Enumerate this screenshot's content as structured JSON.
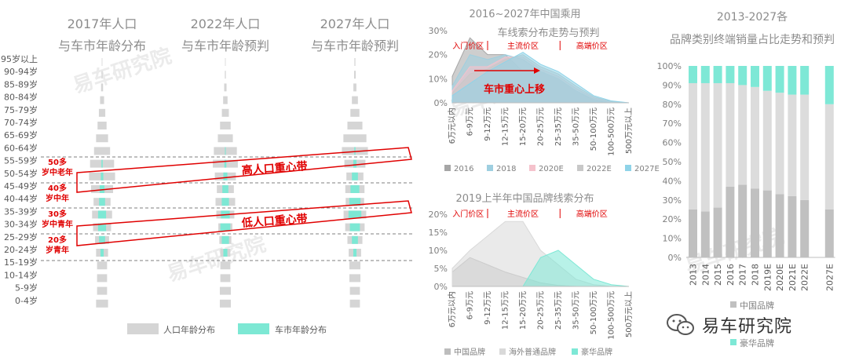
{
  "colors": {
    "population": "#d5d5d5",
    "car": "#7de8d4",
    "red": "#e00000",
    "dark_bar": "#c0c0c0",
    "light_bar": "#dcdcdc",
    "teal": "#7ee8d6"
  },
  "watermark": "易车研究院",
  "brand": {
    "name": "易车研究院",
    "icon": "wechat-icon"
  },
  "chart_data": [
    {
      "type": "bar",
      "subtype": "population-pyramids",
      "panels": [
        {
          "title": "2017年人口与车市年龄分布"
        },
        {
          "title": "2022年人口与车市年龄预判"
        },
        {
          "title": "2027年人口与车市年龄预判"
        }
      ],
      "categories": [
        "95岁以上",
        "90-94岁",
        "85-89岁",
        "80-84岁",
        "75-79岁",
        "70-74岁",
        "65-69岁",
        "60-64岁",
        "55-59岁",
        "50-54岁",
        "45-49岁",
        "40-44岁",
        "35-39岁",
        "30-34岁",
        "25-29岁",
        "20-24岁",
        "15-19岁",
        "10-14岁",
        "5-9岁",
        "0-4岁"
      ],
      "series": [
        {
          "name": "人口年龄分布",
          "values_by_panel": [
            [
              0.3,
              0.5,
              1,
              2,
              3.2,
              4.5,
              6,
              8,
              12,
              13,
              11,
              8.5,
              10,
              9,
              7,
              6,
              5,
              5,
              5,
              6
            ],
            [
              0.3,
              0.5,
              1.2,
              2.2,
              3.5,
              5.3,
              7.5,
              11.5,
              12.5,
              10.5,
              8.5,
              9.8,
              9,
              7,
              6,
              5,
              5,
              5,
              5.5,
              5.5
            ],
            [
              0.5,
              0.8,
              1.5,
              3,
              4.5,
              7.5,
              11.5,
              13,
              10.5,
              8.5,
              9.6,
              9.2,
              11.3,
              9.7,
              7.5,
              6.2,
              5.5,
              5.5,
              5,
              5
            ]
          ]
        },
        {
          "name": "车市年龄分布",
          "values_by_panel": [
            [
              0,
              0,
              0,
              0,
              0,
              0,
              0,
              0,
              0.3,
              0.6,
              1.2,
              1.5,
              2,
              2,
              1.5,
              0.8,
              0,
              0,
              0,
              0
            ],
            [
              0,
              0,
              0,
              0,
              0,
              0,
              0,
              0.2,
              0.5,
              1,
              1.5,
              1.8,
              2.2,
              2.5,
              1.8,
              1,
              0,
              0,
              0,
              0
            ],
            [
              0,
              0,
              0,
              0,
              0,
              0,
              0,
              0.3,
              0.8,
              1.5,
              2.2,
              2.8,
              3.2,
              2.5,
              1.5,
              0.8,
              0,
              0,
              0,
              0
            ]
          ]
        }
      ],
      "annotations": [
        {
          "label": "50多岁中老年"
        },
        {
          "label": "40多岁中年"
        },
        {
          "label": "30多岁中青年"
        },
        {
          "label": "20多岁青年"
        },
        {
          "label": "高人口重心带"
        },
        {
          "label": "低人口重心带"
        }
      ],
      "legend": {
        "position": "bottom"
      }
    },
    {
      "type": "area",
      "title": "2016~2027年中国乘用车线索分布走势与预判",
      "categories": [
        "6万元以内",
        "6-9万元",
        "9-12万元",
        "12-15万元",
        "15-20万元",
        "20-25万元",
        "25-35万元",
        "35-50万元",
        "50-100万元",
        "100-500万元",
        "500万元以上"
      ],
      "series": [
        {
          "name": "2016",
          "values": [
            11,
            27,
            20,
            20,
            13,
            13,
            10,
            5,
            1,
            0,
            0
          ]
        },
        {
          "name": "2018",
          "values": [
            7,
            20,
            18,
            20,
            18,
            13,
            10,
            5,
            1.5,
            0,
            0
          ]
        },
        {
          "name": "2020E",
          "values": [
            5,
            15,
            15,
            19,
            19,
            14,
            11,
            6,
            2,
            0.5,
            0
          ]
        },
        {
          "name": "2022E",
          "values": [
            4,
            12,
            14,
            18,
            20,
            15,
            12,
            7,
            2.5,
            0.5,
            0
          ]
        },
        {
          "name": "2027E",
          "values": [
            3,
            8,
            13,
            17,
            21,
            16,
            13,
            8,
            3,
            0.8,
            0
          ]
        }
      ],
      "ylim": [
        0,
        30
      ],
      "yticks": [
        "0%",
        "10%",
        "20%",
        "30%"
      ],
      "annotations": [
        "入门价区",
        "主流价区",
        "高端价区",
        "车市重心上移"
      ],
      "legend": {
        "position": "bottom"
      }
    },
    {
      "type": "area",
      "title": "2019上半年中国品牌线索分布",
      "categories": [
        "6万元以内",
        "6-9万元",
        "9-12万元",
        "12-15万元",
        "15-20万元",
        "20-25万元",
        "25-35万元",
        "35-50万元",
        "50-100万元",
        "100-500万元",
        "500万元以上"
      ],
      "series": [
        {
          "name": "中国品牌",
          "values": [
            4,
            8,
            6,
            4,
            2.5,
            1,
            0.3,
            0,
            0,
            0,
            0
          ]
        },
        {
          "name": "海外普通品牌",
          "values": [
            5,
            10,
            14,
            18,
            18,
            10,
            6,
            2,
            0.5,
            0,
            0
          ]
        },
        {
          "name": "豪华品牌",
          "values": [
            0,
            0,
            0,
            0,
            0,
            8,
            10,
            6,
            2,
            0.5,
            0
          ]
        }
      ],
      "ylim": [
        0,
        20
      ],
      "yticks": [
        "0%",
        "5%",
        "10%",
        "15%",
        "20%"
      ],
      "annotations": [
        "入门价区",
        "主流价区",
        "高端价区"
      ],
      "legend": {
        "position": "bottom"
      }
    },
    {
      "type": "bar",
      "subtype": "stacked-100",
      "title": "2013-2027各品牌类别终端销量占比走势和预判",
      "categories": [
        "2013",
        "2014",
        "2015",
        "2016",
        "2017",
        "2018",
        "2019E",
        "2020E",
        "2021E",
        "2022E",
        "",
        "2027E"
      ],
      "series": [
        {
          "name": "中国品牌",
          "values": [
            25,
            24,
            26,
            37,
            38,
            36,
            35,
            33,
            32,
            30,
            null,
            25
          ]
        },
        {
          "name": "海外普通品牌",
          "values": [
            66,
            67,
            65,
            54,
            52,
            53,
            52,
            53,
            53,
            55,
            null,
            55
          ]
        },
        {
          "name": "豪华品牌",
          "values": [
            9,
            9,
            9,
            9,
            10,
            11,
            13,
            14,
            15,
            15,
            null,
            20
          ]
        }
      ],
      "ylim": [
        0,
        100
      ],
      "yticks": [
        "0%",
        "10%",
        "20%",
        "30%",
        "40%",
        "50%",
        "60%",
        "70%",
        "80%",
        "90%",
        "100%"
      ],
      "legend": {
        "position": "bottom"
      }
    }
  ]
}
